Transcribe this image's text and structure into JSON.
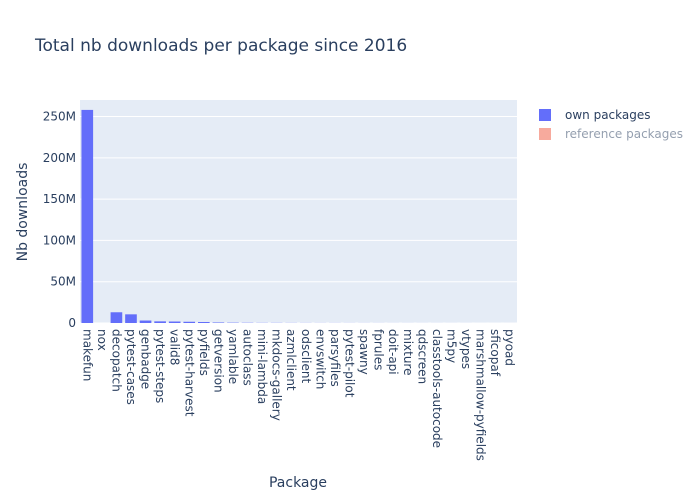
{
  "chart_data": {
    "type": "bar",
    "title": "Total nb downloads per package since 2016",
    "x_label": "Package",
    "y_label": "Nb downloads",
    "categories": [
      "makefun",
      "nox",
      "decopatch",
      "pytest-cases",
      "genbadge",
      "pytest-steps",
      "valid8",
      "pytest-harvest",
      "pyfields",
      "getversion",
      "yamlable",
      "autoclass",
      "mini-lambda",
      "mkdocs-gallery",
      "azmlclient",
      "odsclient",
      "envswitch",
      "parsyfiles",
      "pytest-pilot",
      "spawny",
      "fprules",
      "doit-api",
      "mixture",
      "qdscreen",
      "classtools-autocode",
      "m5py",
      "vtypes",
      "marshmallow-pyfields",
      "sficopaf",
      "pyoad"
    ],
    "series": [
      {
        "name": "own packages",
        "color": "#636efa",
        "visible": true,
        "values": [
          258000000,
          null,
          13000000,
          10500000,
          3000000,
          2000000,
          1800000,
          1500000,
          1200000,
          600000,
          400000,
          300000,
          200000,
          200000,
          150000,
          120000,
          100000,
          100000,
          80000,
          70000,
          60000,
          50000,
          50000,
          40000,
          40000,
          30000,
          30000,
          20000,
          20000,
          10000
        ]
      },
      {
        "name": "reference packages",
        "color": "#EF553B",
        "visible": false,
        "values": [
          null,
          null,
          null,
          null,
          null,
          null,
          null,
          null,
          null,
          null,
          null,
          null,
          null,
          null,
          null,
          null,
          null,
          null,
          null,
          null,
          null,
          null,
          null,
          null,
          null,
          null,
          null,
          null,
          null,
          null
        ]
      }
    ],
    "ylim": [
      0,
      270000000
    ],
    "yticks": [
      {
        "value": 0,
        "label": "0"
      },
      {
        "value": 50000000,
        "label": "50M"
      },
      {
        "value": 100000000,
        "label": "100M"
      },
      {
        "value": 150000000,
        "label": "150M"
      },
      {
        "value": 200000000,
        "label": "200M"
      },
      {
        "value": 250000000,
        "label": "250M"
      }
    ],
    "grid": true,
    "legend": "right"
  }
}
